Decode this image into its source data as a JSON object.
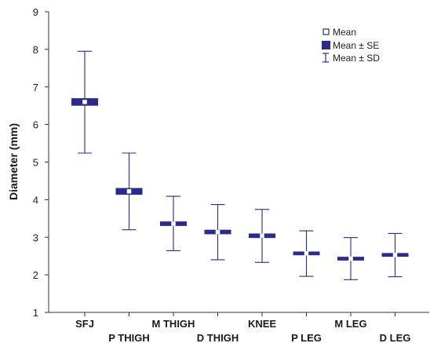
{
  "chart_data": {
    "type": "box",
    "ylabel": "Diameter (mm)",
    "ylim": [
      1,
      9
    ],
    "yticks": [
      1,
      2,
      3,
      4,
      5,
      6,
      7,
      8,
      9
    ],
    "categories": [
      "SFJ",
      "P THIGH",
      "M THIGH",
      "D THIGH",
      "KNEE",
      "P LEG",
      "M LEG",
      "D LEG"
    ],
    "mean": [
      6.6,
      4.22,
      3.36,
      3.14,
      3.04,
      2.57,
      2.43,
      2.53
    ],
    "se_low": [
      6.5,
      4.13,
      3.3,
      3.08,
      2.98,
      2.52,
      2.38,
      2.48
    ],
    "se_high": [
      6.7,
      4.31,
      3.42,
      3.2,
      3.1,
      2.62,
      2.48,
      2.58
    ],
    "sd_low": [
      5.24,
      3.2,
      2.64,
      2.4,
      2.33,
      1.96,
      1.87,
      1.95
    ],
    "sd_high": [
      7.95,
      5.24,
      4.09,
      3.87,
      3.74,
      3.17,
      2.99,
      3.1
    ],
    "legend": {
      "position": "top-right",
      "items": [
        "Mean",
        "Mean ± SE",
        "Mean ± SD"
      ]
    },
    "colors": {
      "series": "#2b2b8c",
      "axis": "#333333",
      "background": "#ffffff"
    }
  }
}
